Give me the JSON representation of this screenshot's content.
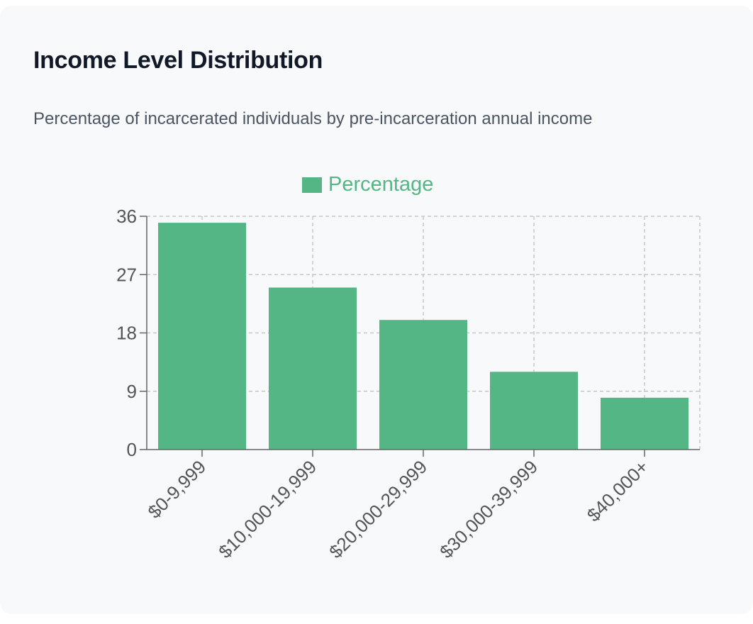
{
  "card": {
    "title": "Income Level Distribution",
    "subtitle": "Percentage of incarcerated individuals by pre-incarceration annual income"
  },
  "chart_data": {
    "type": "bar",
    "title": "",
    "xlabel": "",
    "ylabel": "",
    "categories": [
      "$0-9,999",
      "$10,000-19,999",
      "$20,000-29,999",
      "$30,000-39,999",
      "$40,000+"
    ],
    "series": [
      {
        "name": "Percentage",
        "values": [
          35,
          25,
          20,
          12,
          8
        ],
        "color": "#55b685"
      }
    ],
    "ylim": [
      0,
      36
    ],
    "yticks": [
      0,
      9,
      18,
      27,
      36
    ],
    "grid": true,
    "legend": "top-center",
    "colors": {
      "bar": "#55b685",
      "legend_text": "#55b685",
      "grid": "#c8c8c8",
      "axis": "#666666",
      "tick_text": "#555555"
    }
  }
}
